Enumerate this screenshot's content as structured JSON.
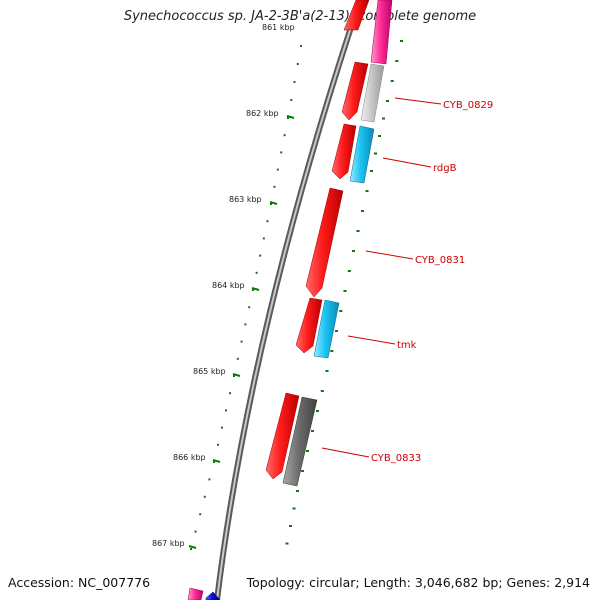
{
  "title": "Synechococcus sp. JA-2-3B'a(2-13), complete genome",
  "footer": {
    "accession": "Accession: NC_007776",
    "summary": "Topology: circular; Length: 3,046,682 bp; Genes: 2,914"
  },
  "ruler": {
    "top_partial_label": "861 kbp",
    "ticks": [
      {
        "label": "862 kbp"
      },
      {
        "label": "863 kbp"
      },
      {
        "label": "864 kbp"
      },
      {
        "label": "865 kbp"
      },
      {
        "label": "866 kbp"
      },
      {
        "label": "867 kbp"
      }
    ]
  },
  "gene_labels": [
    "CYB_0829",
    "rdgB",
    "CYB_0831",
    "tmk",
    "CYB_0833"
  ],
  "colors": {
    "backbone": "#8a8a8a",
    "cds": "#ff1a1a",
    "cds_dark": "#c40000",
    "cog_pink": "#ff2d95",
    "cog_grey_light": "#c8c8c8",
    "cog_cyan": "#19c3f2",
    "cog_grey_dark": "#6e6e6e",
    "cog_blue": "#0a0acc",
    "tick": "#0a7a0a",
    "label": "#cc0000"
  }
}
